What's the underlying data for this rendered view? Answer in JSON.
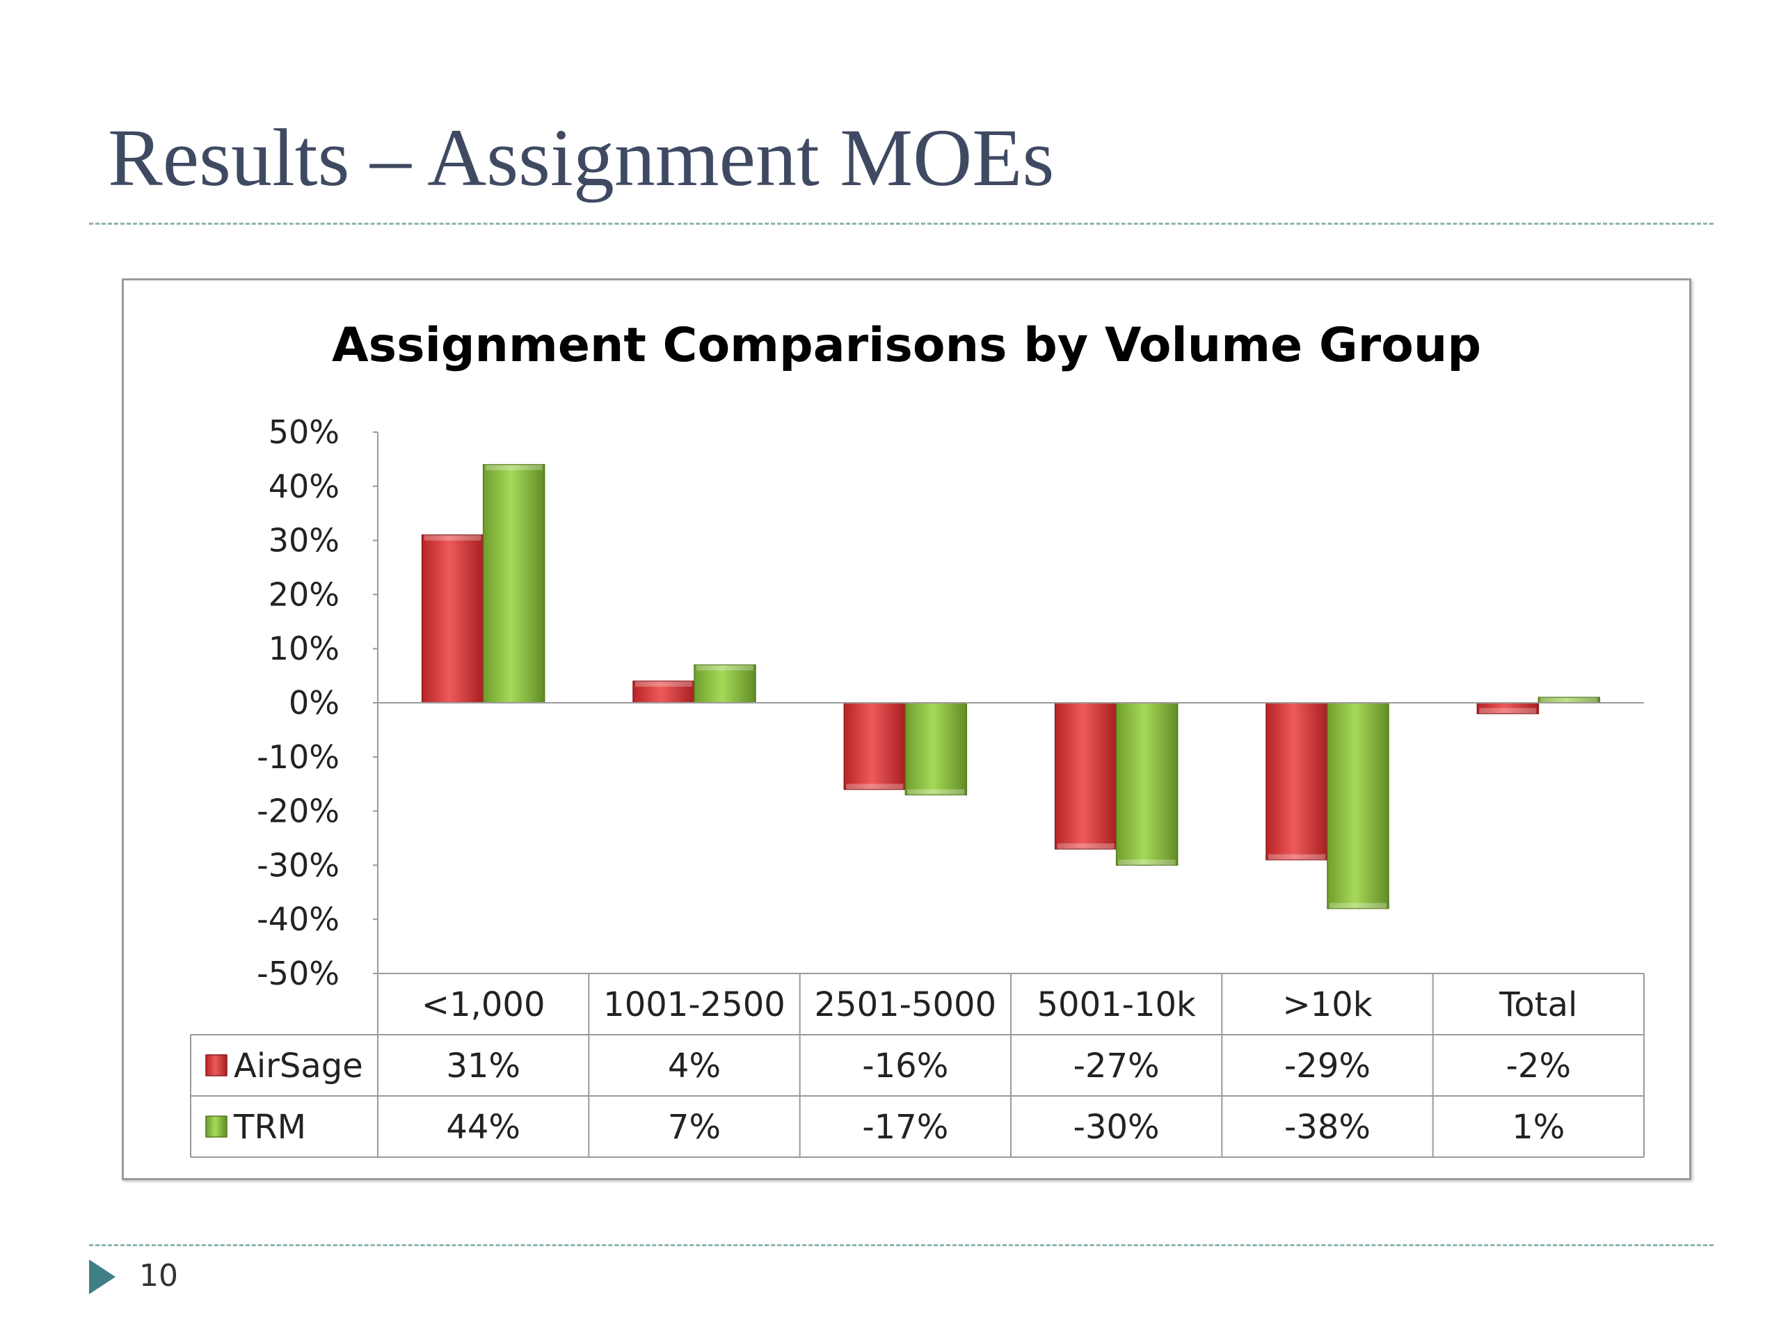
{
  "slide": {
    "title": "Results – Assignment MOEs",
    "slide_number": "10",
    "accent_color": "#3f7f85"
  },
  "chart_data": {
    "type": "bar",
    "title": "Assignment Comparisons by Volume Group",
    "categories": [
      "<1,000",
      "1001-2500",
      "2501-5000",
      "5001-10k",
      ">10k",
      "Total"
    ],
    "series": [
      {
        "name": "AirSage",
        "values": [
          31,
          4,
          -16,
          -27,
          -29,
          -2
        ],
        "value_labels": [
          "31%",
          "4%",
          "-16%",
          "-27%",
          "-29%",
          "-2%"
        ],
        "color": "#d9383a"
      },
      {
        "name": "TRM",
        "values": [
          44,
          7,
          -17,
          -30,
          -38,
          1
        ],
        "value_labels": [
          "44%",
          "7%",
          "-17%",
          "-30%",
          "-38%",
          "1%"
        ],
        "color": "#8dc63f"
      }
    ],
    "ylim": [
      -50,
      50
    ],
    "ytick_step": 10,
    "ytick_labels": [
      "50%",
      "40%",
      "30%",
      "20%",
      "10%",
      "0%",
      "-10%",
      "-20%",
      "-30%",
      "-40%",
      "-50%"
    ],
    "xlabel": "",
    "ylabel": "",
    "data_table": true,
    "grid": false
  }
}
